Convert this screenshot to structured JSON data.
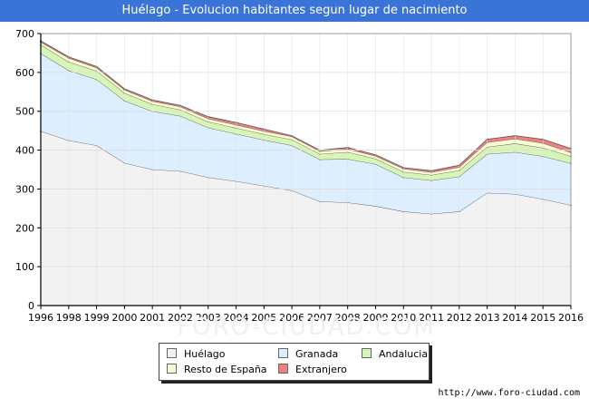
{
  "title": "Huélago - Evolucion habitantes segun lugar de nacimiento",
  "source": "http://www.foro-ciudad.com",
  "watermark": "FORO-CIUDAD.COM",
  "chart_data": {
    "type": "area",
    "stacked": true,
    "x": [
      "1996",
      "1998",
      "1999",
      "2000",
      "2001",
      "2002",
      "2003",
      "2004",
      "2005",
      "2006",
      "2007",
      "2008",
      "2009",
      "2010",
      "2011",
      "2012",
      "2013",
      "2014",
      "2015",
      "2016"
    ],
    "ylim": [
      0,
      700
    ],
    "yticks": [
      0,
      100,
      200,
      300,
      400,
      500,
      600,
      700
    ],
    "grid": true,
    "legend_position": "bottom",
    "series": [
      {
        "name": "Huélago",
        "color": "#f2f2f2",
        "values": [
          449,
          425,
          412,
          367,
          350,
          346,
          330,
          320,
          308,
          296,
          268,
          265,
          256,
          242,
          236,
          242,
          290,
          287,
          274,
          258
        ]
      },
      {
        "name": "Granada",
        "color": "#ddeeff",
        "values": [
          200,
          180,
          170,
          160,
          150,
          142,
          128,
          122,
          118,
          116,
          108,
          112,
          108,
          88,
          86,
          90,
          100,
          108,
          110,
          108
        ]
      },
      {
        "name": "Andalucia",
        "color": "#d7f5b6",
        "values": [
          22,
          22,
          22,
          20,
          18,
          16,
          15,
          15,
          15,
          15,
          14,
          18,
          14,
          14,
          14,
          16,
          18,
          22,
          22,
          18
        ]
      },
      {
        "name": "Resto de España",
        "color": "#fafad2",
        "values": [
          7,
          10,
          8,
          8,
          8,
          8,
          8,
          8,
          8,
          8,
          7,
          8,
          7,
          8,
          7,
          8,
          12,
          12,
          12,
          10
        ]
      },
      {
        "name": "Extranjero",
        "color": "#f07f7f",
        "values": [
          3,
          3,
          3,
          3,
          3,
          3,
          5,
          6,
          5,
          2,
          3,
          4,
          3,
          3,
          4,
          5,
          8,
          8,
          10,
          10
        ]
      }
    ]
  }
}
